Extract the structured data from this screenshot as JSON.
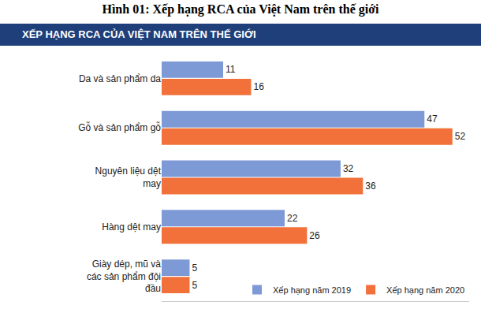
{
  "chart_data": {
    "type": "bar",
    "title": "Hình 01: Xếp hạng RCA của Việt Nam trên thế giới",
    "subtitle": "XẾP HẠNG RCA CỦA VIỆT NAM TRÊN THẾ GIỚI",
    "orientation": "horizontal",
    "categories": [
      "Da và sản phẩm da",
      "Gỗ và sản phẩm gỗ",
      "Nguyên liệu dệt may",
      "Hàng dệt may",
      "Giày dép, mũ và các sản phẩm đội đầu"
    ],
    "series": [
      {
        "name": "Xếp hạng năm 2019",
        "color": "#7e9ad6",
        "values": [
          11,
          47,
          32,
          22,
          5
        ]
      },
      {
        "name": "Xếp hạng năm 2020",
        "color": "#f2703a",
        "values": [
          16,
          52,
          36,
          26,
          5
        ]
      }
    ],
    "xlim": [
      0,
      55
    ],
    "xticks": [],
    "grid": false,
    "data_labels": true,
    "tick_labels": "y",
    "legend": "lower right"
  }
}
